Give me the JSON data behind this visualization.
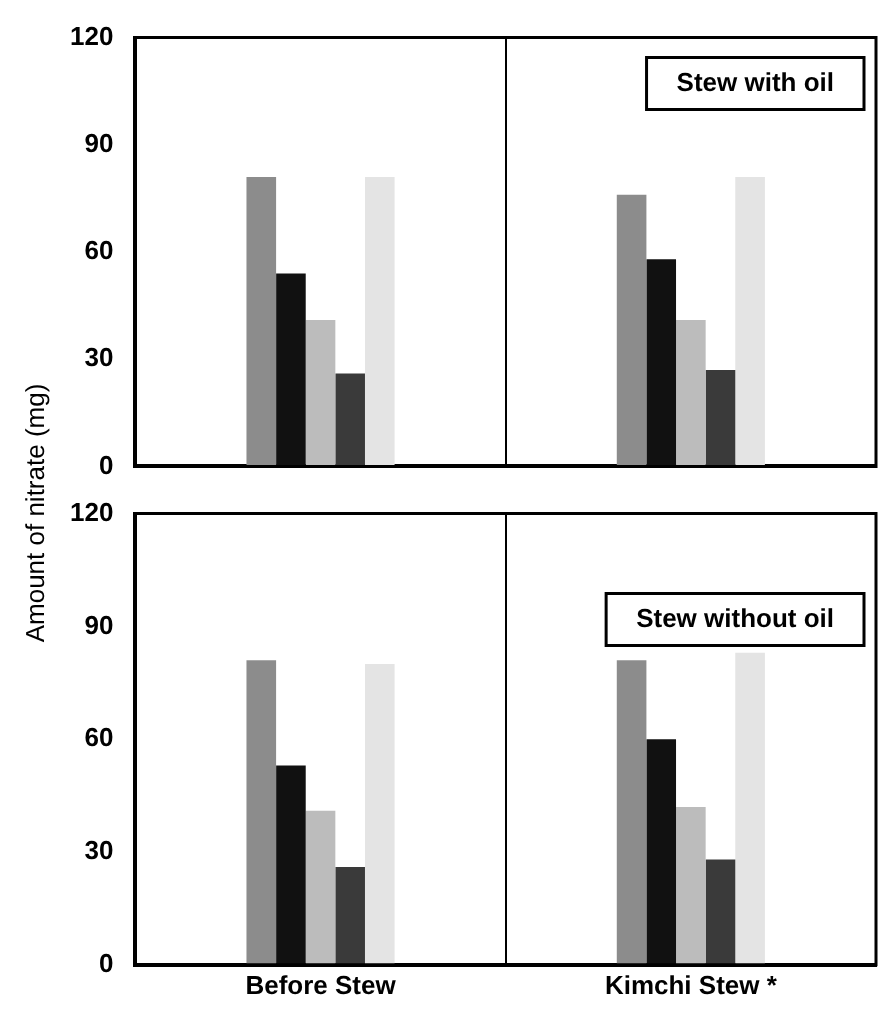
{
  "chart_data": [
    {
      "type": "bar",
      "title": "Stew with oil",
      "ylabel": "Amount of nitrate (mg)",
      "categories": [
        null,
        null
      ],
      "series": [
        {
          "color": "#8c8c8c",
          "values": [
            81,
            76
          ]
        },
        {
          "color": "#111111",
          "values": [
            54,
            58
          ]
        },
        {
          "color": "#bcbcbc",
          "values": [
            41,
            41
          ]
        },
        {
          "color": "#3a3a3a",
          "values": [
            26,
            27
          ]
        },
        {
          "color": "#e4e4e4",
          "values": [
            81,
            81
          ]
        }
      ],
      "ylim": [
        0,
        120
      ],
      "yticks": [
        0,
        30,
        60,
        90,
        120
      ],
      "grid": "x",
      "legend": false,
      "tick_labels": "y"
    },
    {
      "type": "bar",
      "title": "Stew without oil",
      "categories": [
        "Before Stew",
        "Kimchi Stew *"
      ],
      "series": [
        {
          "color": "#8c8c8c",
          "values": [
            81,
            81
          ]
        },
        {
          "color": "#111111",
          "values": [
            53,
            60
          ]
        },
        {
          "color": "#bcbcbc",
          "values": [
            41,
            42
          ]
        },
        {
          "color": "#3a3a3a",
          "values": [
            26,
            28
          ]
        },
        {
          "color": "#e4e4e4",
          "values": [
            80,
            83
          ]
        }
      ],
      "ylim": [
        0,
        120
      ],
      "yticks": [
        0,
        30,
        60,
        90,
        120
      ],
      "grid": "x",
      "legend": false
    }
  ]
}
